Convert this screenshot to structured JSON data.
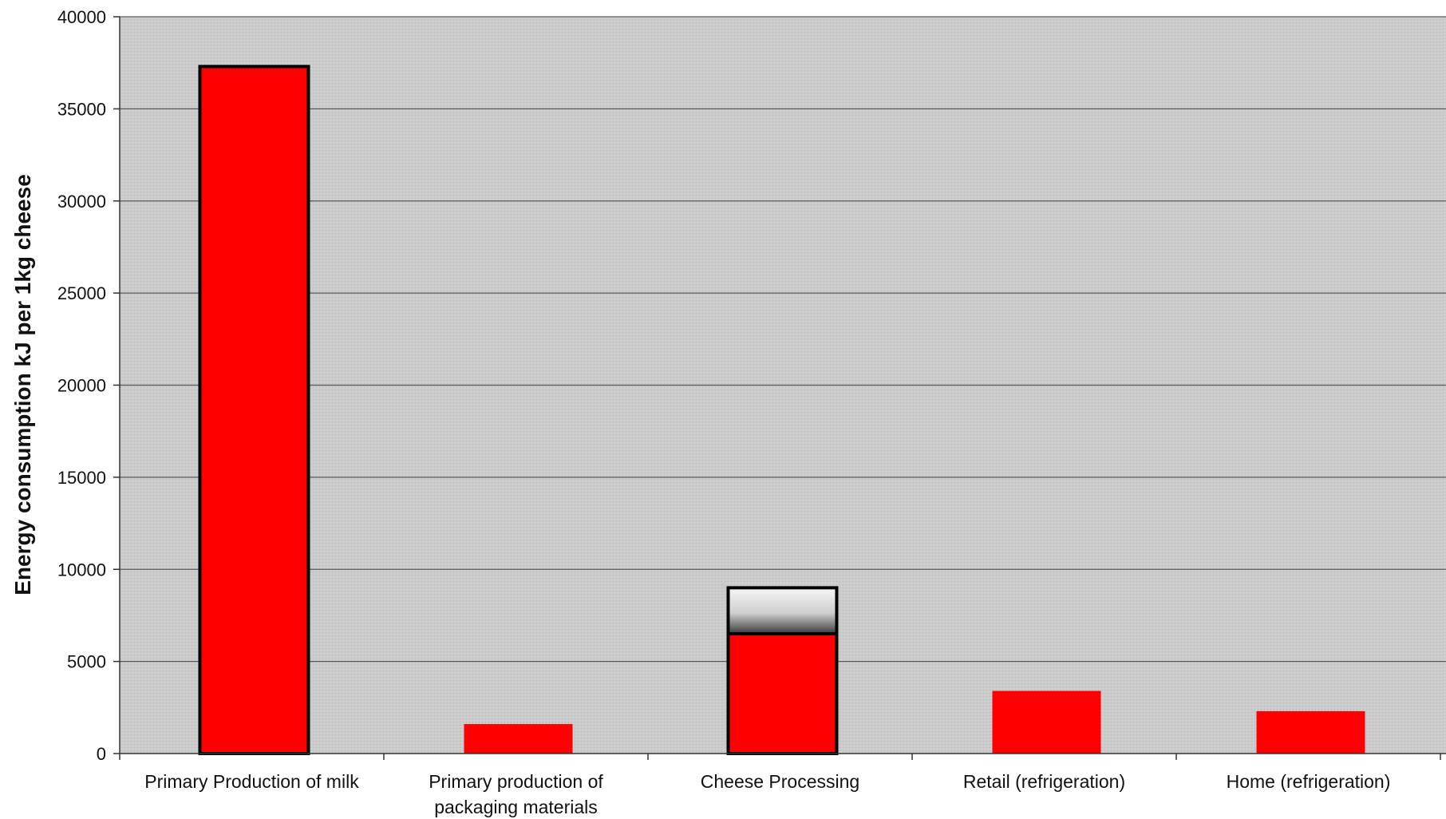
{
  "chart_data": {
    "type": "bar",
    "title": "",
    "xlabel": "",
    "ylabel": "Energy consumption kJ per 1kg cheese",
    "ylim": [
      0,
      40000
    ],
    "yticks": [
      0,
      5000,
      10000,
      15000,
      20000,
      25000,
      30000,
      35000,
      40000
    ],
    "grid": true,
    "legend": "none",
    "categories": [
      [
        "Primary Production of milk"
      ],
      [
        "Primary production of",
        "packaging materials"
      ],
      [
        "Cheese Processing"
      ],
      [
        "Retail (refrigeration)"
      ],
      [
        "Home (refrigeration)"
      ]
    ],
    "series": [
      {
        "values": [
          37300,
          1600,
          6500,
          3400,
          2300
        ],
        "color": "#ff0000"
      },
      {
        "values": [
          0,
          0,
          2500,
          0,
          0
        ],
        "color": "#d8d8d8"
      }
    ],
    "plot_background": "#c9c9c9"
  }
}
